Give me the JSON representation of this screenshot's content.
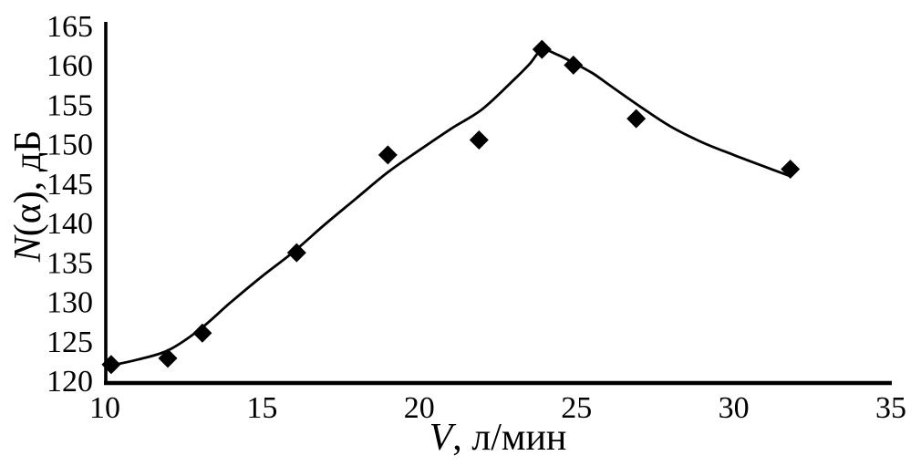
{
  "page": {
    "background": "#ffffff",
    "ink_color": "#000000"
  },
  "chart_data": {
    "type": "scatter",
    "title": "",
    "xlabel": "V, л/мин",
    "xlabel_italic": "V",
    "xlabel_rest": ", л/мин",
    "ylabel": "N(α), дБ",
    "ylabel_italic": "N",
    "ylabel_rest": "(α), дБ",
    "xlim": [
      10,
      35
    ],
    "ylim": [
      120,
      165
    ],
    "x_ticks": [
      "10",
      "15",
      "20",
      "25",
      "30",
      "35"
    ],
    "y_ticks": [
      "120",
      "125",
      "130",
      "135",
      "140",
      "145",
      "150",
      "155",
      "160",
      "165"
    ],
    "grid": false,
    "legend": false,
    "marker": "diamond",
    "marker_size_px": 21,
    "marker_color": "#000000",
    "line_color": "#000000",
    "series_description": "Measured noise level points with fitted smooth trend curve",
    "points": [
      [
        10.2,
        122.1
      ],
      [
        12.0,
        122.9
      ],
      [
        13.1,
        126.1
      ],
      [
        16.1,
        136.3
      ],
      [
        19.0,
        148.7
      ],
      [
        21.9,
        150.6
      ],
      [
        23.9,
        162.1
      ],
      [
        24.9,
        160.1
      ],
      [
        26.9,
        153.3
      ],
      [
        31.8,
        146.9
      ]
    ],
    "curve": [
      [
        10.2,
        122.0
      ],
      [
        11,
        122.7
      ],
      [
        12,
        123.9
      ],
      [
        13,
        126.5
      ],
      [
        14,
        130.0
      ],
      [
        15,
        133.3
      ],
      [
        16,
        136.4
      ],
      [
        17,
        139.9
      ],
      [
        18,
        143.2
      ],
      [
        19,
        146.5
      ],
      [
        20,
        149.3
      ],
      [
        21,
        152.0
      ],
      [
        22,
        154.5
      ],
      [
        23,
        158.2
      ],
      [
        23.5,
        160.2
      ],
      [
        23.9,
        162.0
      ],
      [
        24.4,
        161.4
      ],
      [
        24.9,
        160.4
      ],
      [
        25.5,
        159.1
      ],
      [
        26,
        157.7
      ],
      [
        27,
        154.9
      ],
      [
        28,
        152.3
      ],
      [
        29,
        150.3
      ],
      [
        30,
        148.7
      ],
      [
        31,
        147.2
      ],
      [
        31.8,
        146.0
      ]
    ]
  }
}
